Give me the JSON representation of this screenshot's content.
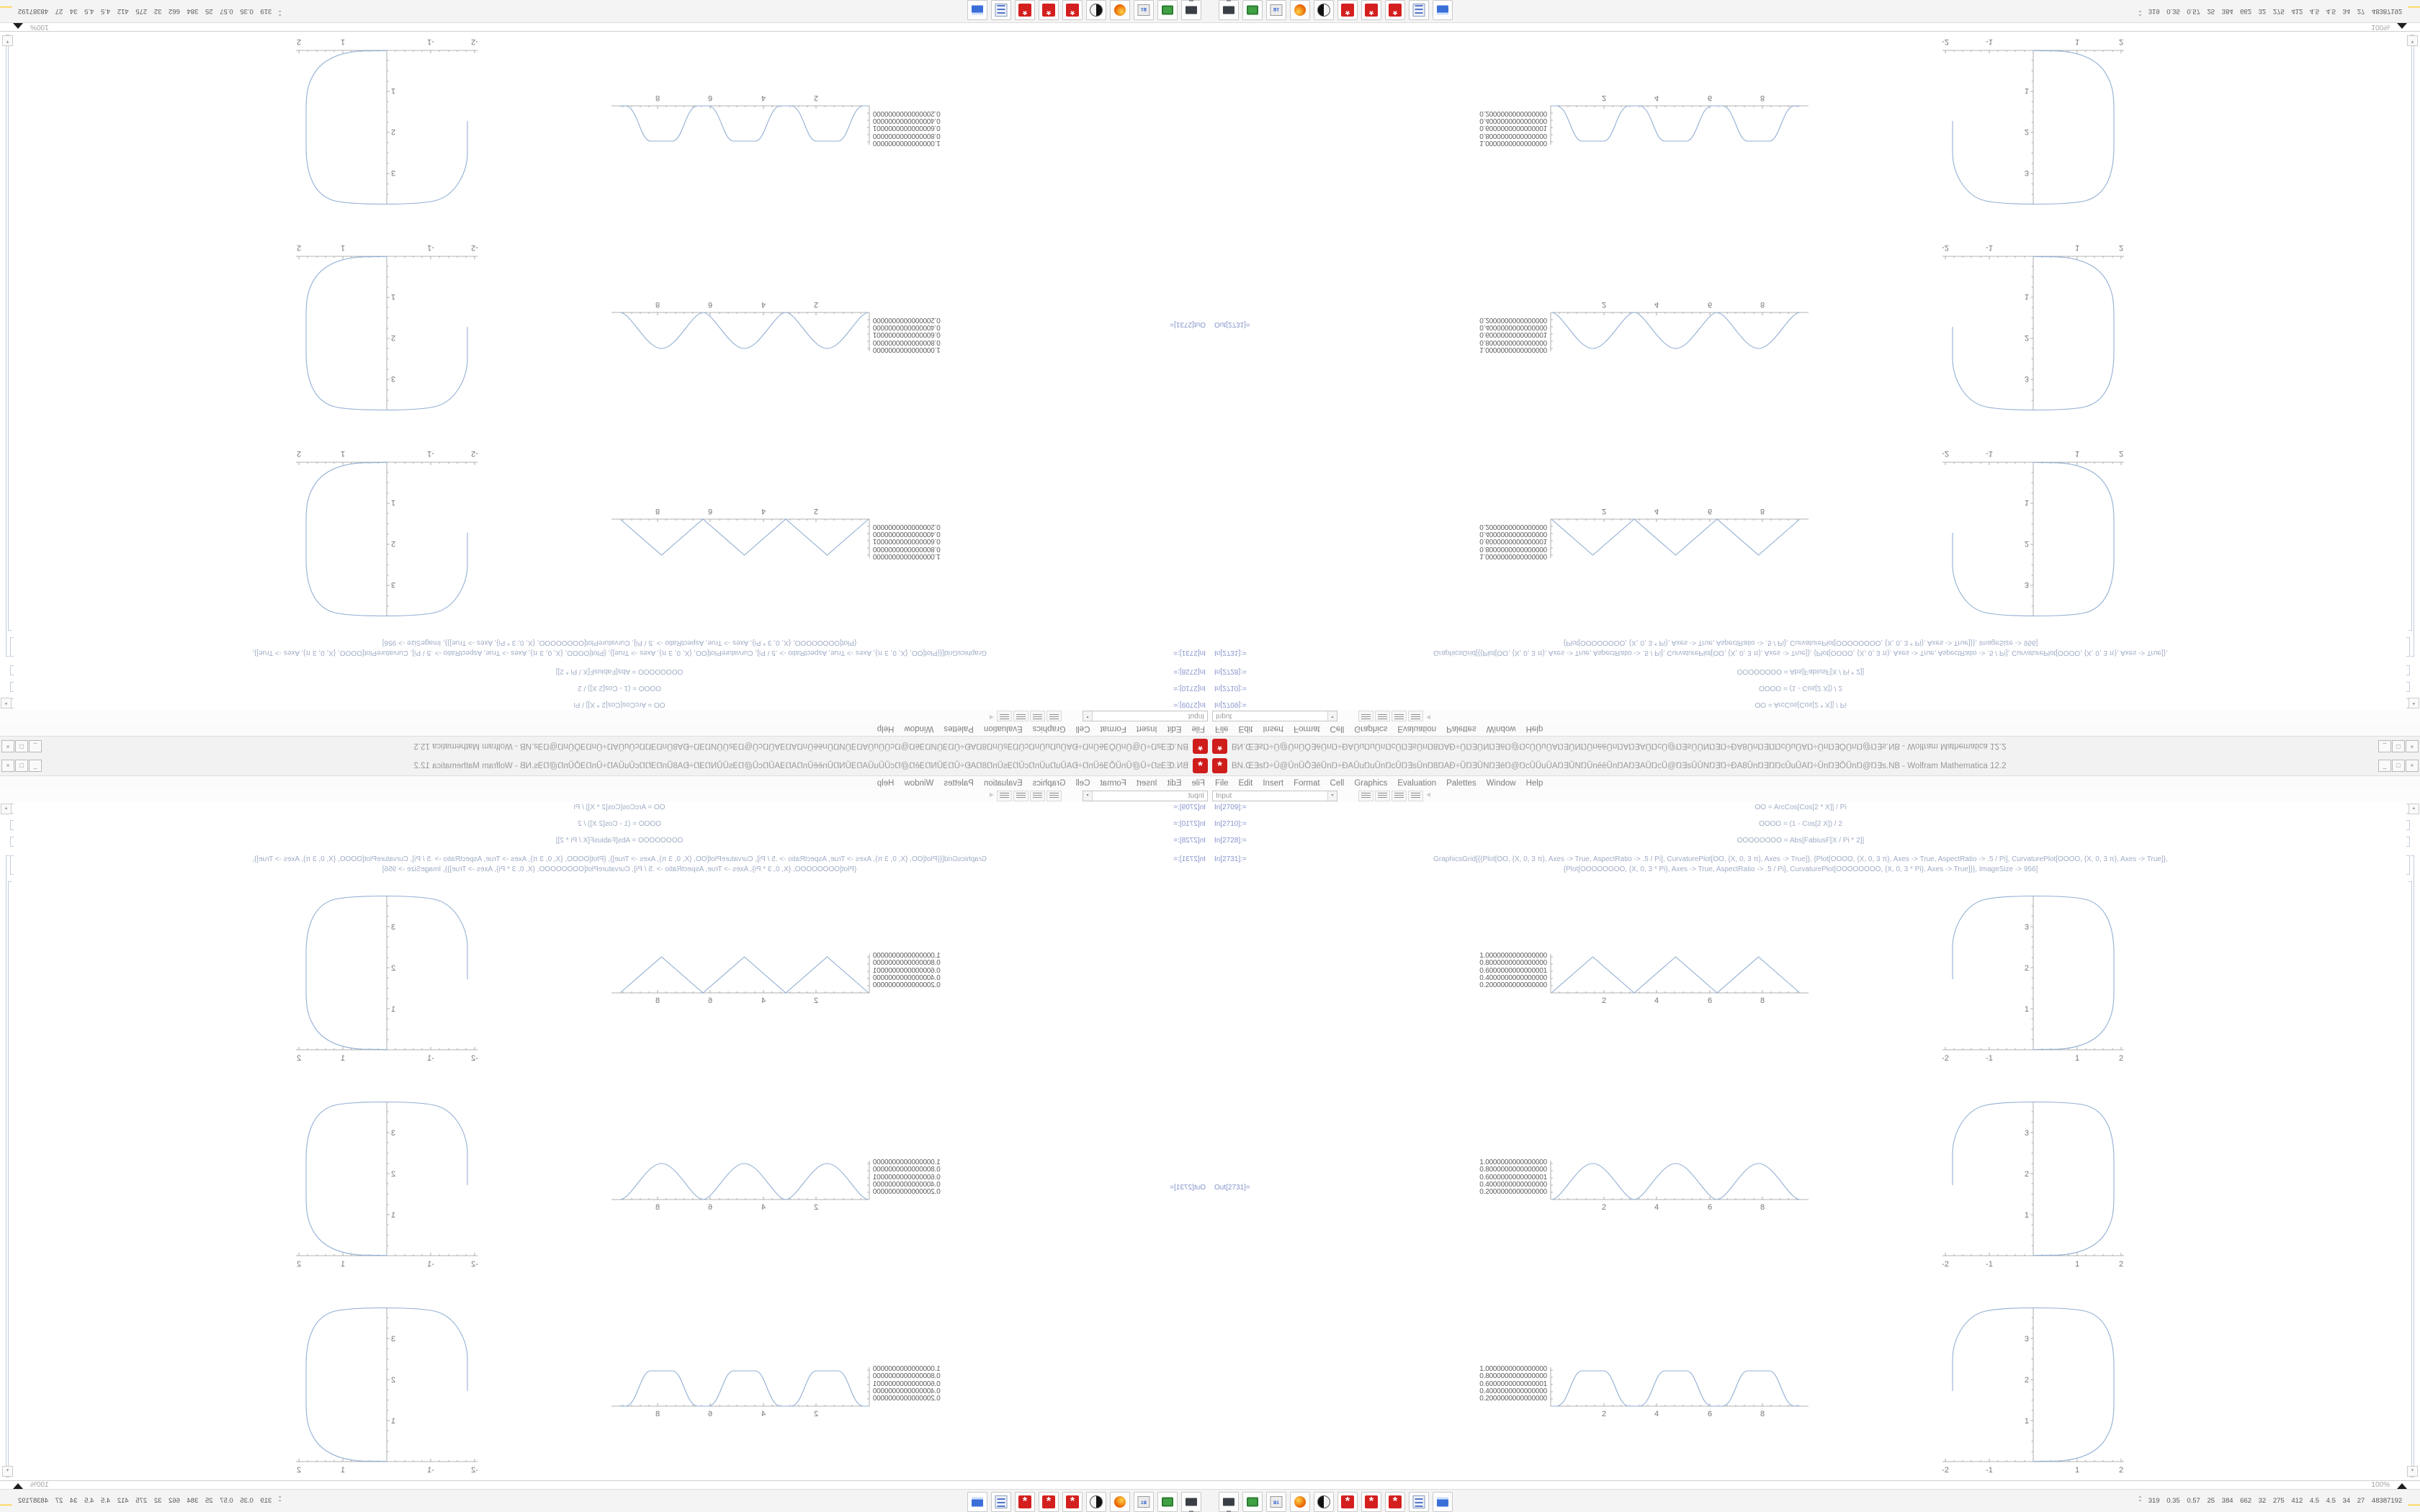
{
  "window": {
    "title": "BN.Œ∃sŊ÷Ŭ@ŬnŬŎ∃ēŬnŊ÷ĐAŬuŊuŬnŊcŬŊ∃sŬnŊ8ŊAĐ÷ŬŊ∃ŬNŊ∃ēŊ@ŊcŬŬuŬAŊ∃ŬNŊŬnēēŬnŊAŊ∃AŬŊcŬ@Ŋ∃sŬŬNŊ∃Ŋ÷ĐA8ŬnŊ∃ŊŊcŬuŬAŊ÷ŬnŊ∃ŎŬnŊ@Ŋ∃s.NB - Wolfram Mathematica 12.2",
    "app_icon": "mathematica-logo",
    "buttons": {
      "minimize": "_",
      "restore": "□",
      "close": "×"
    }
  },
  "menu": {
    "items": [
      "File",
      "Edit",
      "Insert",
      "Format",
      "Cell",
      "Graphics",
      "Evaluation",
      "Palettes",
      "Window",
      "Help"
    ]
  },
  "toolbar": {
    "cell_style": "Input"
  },
  "notebook": {
    "cells": [
      {
        "label": "In[2709]:=",
        "code": "OO = ArcCos[Cos[2 * X]] / Pi"
      },
      {
        "label": "In[2710]:=",
        "code": "OOOO = (1 - Cos[2 X]) / 2"
      },
      {
        "label": "In[2728]:=",
        "code": "OOOOOOOO = Abs[FabiusF[X / Pi * 2]]"
      },
      {
        "label": "In[2731]:=",
        "code": "GraphicsGrid[{{Plot[OO, {X, 0, 3 π}, Axes -> True, AspectRatio -> .5 / Pi], CurvaturePlot[OO, {X, 0, 3 π}, Axes -> True]}, {Plot[OOOO, {X, 0, 3 π}, Axes -> True, AspectRatio -> .5 / Pi], CurvaturePlot[OOOO, {X, 0, 3 π}, Axes -> True]},",
        "code2": "{Plot[OOOOOOOO, {X, 0, 3 * Pi}, Axes -> True, AspectRatio -> .5 / Pi], CurvaturePlot[OOOOOOOO, {X, 0, 3 * Pi}, Axes -> True]}}, ImageSize -> 956]"
      }
    ],
    "out_label": "Out[2731]=",
    "magnification": "100%"
  },
  "plots": {
    "ytick_labels": [
      "1.0000000000000000",
      "0.8000000000000000",
      "0.6000000000000001",
      "0.4000000000000000",
      "0.2000000000000000"
    ],
    "xtick_labels": [
      "2",
      "4",
      "6",
      "8"
    ],
    "curv_xticks": [
      "-2",
      "-1",
      "1",
      "2"
    ],
    "curv_yticks": [
      "1",
      "2",
      "3"
    ],
    "line_color": "#93afd4",
    "axis_color": "#9a9a9a"
  },
  "chart_data": [
    {
      "id": "wave-triangle",
      "type": "line",
      "title": "Plot[OO, {X, 0, 3π}] — triangle wave ArcCos[Cos[2X]]/π",
      "xlabel": "",
      "ylabel": "",
      "x_range": [
        0,
        9.42
      ],
      "y_range": [
        0,
        1
      ],
      "xticks": [
        2,
        4,
        6,
        8
      ],
      "ytick_labels": [
        "1.0000000000000000",
        "0.8000000000000000",
        "0.6000000000000001",
        "0.4000000000000000",
        "0.2000000000000000"
      ],
      "points": [
        [
          0,
          0
        ],
        [
          1.571,
          1
        ],
        [
          3.142,
          0
        ],
        [
          4.712,
          1
        ],
        [
          6.283,
          0
        ],
        [
          7.854,
          1
        ],
        [
          9.425,
          0
        ]
      ]
    },
    {
      "id": "wave-sin2",
      "type": "line",
      "title": "Plot[OOOO, {X, 0, 3π}] — (1-Cos[2X])/2 smooth bumps",
      "x_range": [
        0,
        9.42
      ],
      "y_range": [
        0,
        1
      ],
      "xticks": [
        2,
        4,
        6,
        8
      ],
      "points": [
        [
          0,
          0
        ],
        [
          0.785,
          0.5
        ],
        [
          1.571,
          1
        ],
        [
          2.356,
          0.5
        ],
        [
          3.142,
          0
        ],
        [
          3.927,
          0.5
        ],
        [
          4.712,
          1
        ],
        [
          5.498,
          0.5
        ],
        [
          6.283,
          0
        ],
        [
          7.069,
          0.5
        ],
        [
          7.854,
          1
        ],
        [
          8.639,
          0.5
        ],
        [
          9.425,
          0
        ]
      ]
    },
    {
      "id": "wave-fabius",
      "type": "line",
      "title": "Plot[OOOOOOOO, {X, 0, 3π}] — Abs[FabiusF[X/Pi*2]] flat-top bumps",
      "x_range": [
        0,
        9.42
      ],
      "y_range": [
        0,
        1
      ],
      "xticks": [
        2,
        4,
        6,
        8
      ],
      "points": [
        [
          0,
          0
        ],
        [
          0.3,
          0
        ],
        [
          1.1,
          0.95
        ],
        [
          1.571,
          1
        ],
        [
          2.05,
          0.95
        ],
        [
          2.85,
          0
        ],
        [
          3.45,
          0
        ],
        [
          4.25,
          0.95
        ],
        [
          4.712,
          1
        ],
        [
          5.2,
          0.95
        ],
        [
          5.98,
          0
        ],
        [
          6.58,
          0
        ],
        [
          7.38,
          0.95
        ],
        [
          7.854,
          1
        ],
        [
          8.34,
          0.95
        ],
        [
          9.12,
          0
        ],
        [
          9.425,
          0
        ]
      ]
    },
    {
      "id": "curvature-1",
      "type": "line",
      "title": "CurvaturePlot[OO, {X, 0, 3π}] — open rounded square",
      "x_range": [
        -2,
        2
      ],
      "y_range": [
        0,
        3.8
      ],
      "xticks": [
        -2,
        -1,
        1,
        2
      ],
      "yticks": [
        1,
        2,
        3
      ],
      "points": [
        [
          0,
          0
        ],
        [
          0.6,
          0.02
        ],
        [
          1.3,
          0.2
        ],
        [
          1.75,
          0.7
        ],
        [
          1.87,
          1.3
        ],
        [
          1.87,
          2.6
        ],
        [
          1.6,
          3.4
        ],
        [
          1.0,
          3.7
        ],
        [
          0,
          3.73
        ],
        [
          -1.0,
          3.7
        ],
        [
          -1.6,
          3.4
        ],
        [
          -1.84,
          2.7
        ],
        [
          -1.84,
          1.9
        ]
      ]
    },
    {
      "id": "curvature-2",
      "type": "line",
      "title": "CurvaturePlot[OOOO, {X, 0, 3π}] — open rounded square",
      "x_range": [
        -2,
        2
      ],
      "y_range": [
        0,
        3.8
      ],
      "xticks": [
        -2,
        -1,
        1,
        2
      ],
      "yticks": [
        1,
        2,
        3
      ],
      "points": [
        [
          0,
          0
        ],
        [
          0.6,
          0.02
        ],
        [
          1.3,
          0.2
        ],
        [
          1.75,
          0.7
        ],
        [
          1.87,
          1.3
        ],
        [
          1.87,
          2.6
        ],
        [
          1.6,
          3.4
        ],
        [
          1.0,
          3.7
        ],
        [
          0,
          3.73
        ],
        [
          -1.0,
          3.7
        ],
        [
          -1.6,
          3.4
        ],
        [
          -1.84,
          2.7
        ],
        [
          -1.84,
          1.9
        ]
      ]
    },
    {
      "id": "curvature-3",
      "type": "line",
      "title": "CurvaturePlot[OOOOOOOO, {X, 0, 3π}] — open rounded square",
      "x_range": [
        -2,
        2
      ],
      "y_range": [
        0,
        3.8
      ],
      "xticks": [
        -2,
        -1,
        1,
        2
      ],
      "yticks": [
        1,
        2,
        3
      ],
      "points": [
        [
          0,
          0
        ],
        [
          0.6,
          0.02
        ],
        [
          1.3,
          0.2
        ],
        [
          1.75,
          0.7
        ],
        [
          1.87,
          1.3
        ],
        [
          1.87,
          2.6
        ],
        [
          1.6,
          3.4
        ],
        [
          1.0,
          3.7
        ],
        [
          0,
          3.73
        ],
        [
          -1.0,
          3.7
        ],
        [
          -1.6,
          3.4
        ],
        [
          -1.84,
          2.7
        ],
        [
          -1.84,
          1.9
        ]
      ]
    }
  ],
  "taskbar": {
    "icons": [
      "display",
      "file-manager",
      "save-b1",
      "firefox",
      "gimp",
      "mathematica-1",
      "mathematica-2",
      "mathematica-3",
      "calculator",
      "terminal"
    ],
    "tray_text": "319 0.35 0.57 25 384 662 32 275 412 4.5 4.5 34 27 48387192"
  }
}
